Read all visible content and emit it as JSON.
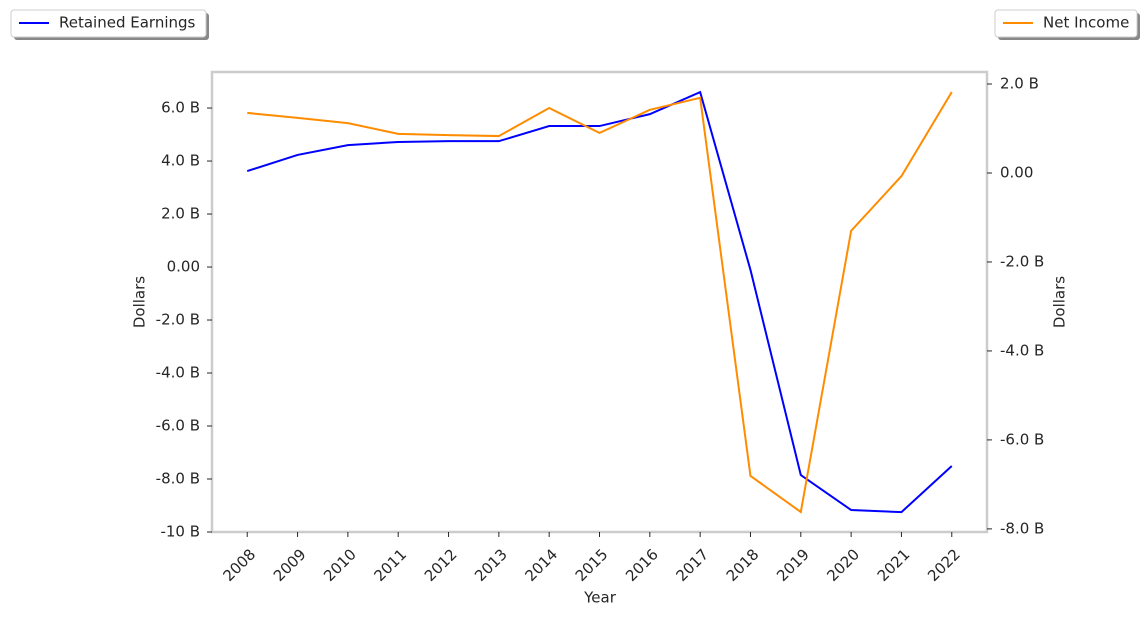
{
  "chart_data": {
    "type": "line",
    "xlabel": "Year",
    "ylabel": "Dollars",
    "y2label": "Dollars",
    "categories": [
      "2008",
      "2009",
      "2010",
      "2011",
      "2012",
      "2013",
      "2014",
      "2015",
      "2016",
      "2017",
      "2018",
      "2019",
      "2020",
      "2021",
      "2022"
    ],
    "series": [
      {
        "name": "Retained Earnings",
        "color": "#0000ff",
        "axis": "y",
        "legend": "upper left",
        "values": [
          3.62,
          4.23,
          4.6,
          4.72,
          4.75,
          4.75,
          5.32,
          5.32,
          5.77,
          6.6,
          -0.11,
          -7.85,
          -9.17,
          -9.25,
          -7.51
        ]
      },
      {
        "name": "Net Income",
        "color": "#ff8c00",
        "axis": "y2",
        "legend": "upper right",
        "values": [
          1.35,
          1.24,
          1.12,
          0.88,
          0.85,
          0.83,
          1.46,
          0.9,
          1.42,
          1.69,
          -6.81,
          -7.62,
          -1.3,
          -0.07,
          1.82
        ]
      }
    ],
    "ylim": [
      -10,
      7.36
    ],
    "yticks": [
      {
        "value": -10,
        "label": "-10 B"
      },
      {
        "value": -8,
        "label": "-8.0 B"
      },
      {
        "value": -6,
        "label": "-6.0 B"
      },
      {
        "value": -4,
        "label": "-4.0 B"
      },
      {
        "value": -2,
        "label": "-2.0 B"
      },
      {
        "value": 0,
        "label": "0.00"
      },
      {
        "value": 2,
        "label": "2.0 B"
      },
      {
        "value": 4,
        "label": "4.0 B"
      },
      {
        "value": 6,
        "label": "6.0 B"
      }
    ],
    "y2lim": [
      -8.07,
      2.27
    ],
    "y2ticks": [
      {
        "value": -8,
        "label": "-8.0 B"
      },
      {
        "value": -6,
        "label": "-6.0 B"
      },
      {
        "value": -4,
        "label": "-4.0 B"
      },
      {
        "value": -2,
        "label": "-2.0 B"
      },
      {
        "value": 0,
        "label": "0.00"
      },
      {
        "value": 2,
        "label": "2.0 B"
      }
    ],
    "grid": false
  }
}
